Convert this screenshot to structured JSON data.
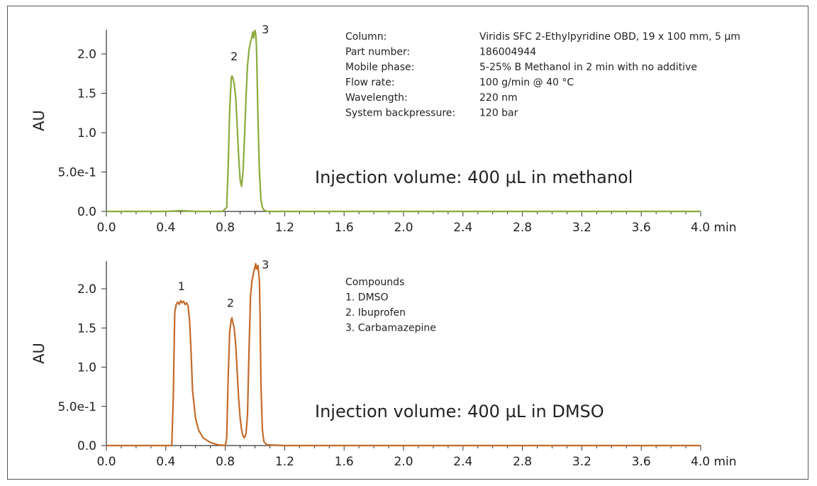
{
  "chart_data": [
    {
      "type": "line",
      "ylabel": "AU",
      "xunit": "min",
      "xlim": [
        0.0,
        4.0
      ],
      "ylim": [
        0.0,
        2.35
      ],
      "xticks": [
        0.0,
        0.4,
        0.8,
        1.2,
        1.6,
        2.0,
        2.4,
        2.8,
        3.2,
        3.6,
        4.0
      ],
      "xtick_labels": [
        "0.0",
        "0.4",
        "0.8",
        "1.2",
        "1.6",
        "2.0",
        "2.4",
        "2.8",
        "3.2",
        "3.6",
        "4.0 min"
      ],
      "yticks": [
        0.0,
        0.5,
        1.0,
        1.5,
        2.0
      ],
      "ytick_labels": [
        "0.0",
        "5.0e-1",
        "1.0",
        "1.5",
        "2.0"
      ],
      "series": [
        {
          "color": "#8aab3c",
          "x": [
            0.0,
            0.4,
            0.5,
            0.6,
            0.78,
            0.81,
            0.82,
            0.83,
            0.84,
            0.845,
            0.85,
            0.86,
            0.87,
            0.88,
            0.89,
            0.9,
            0.91,
            0.92,
            0.93,
            0.94,
            0.95,
            0.96,
            0.97,
            0.98,
            0.985,
            0.99,
            1.0,
            1.005,
            1.01,
            1.015,
            1.02,
            1.03,
            1.04,
            1.05,
            1.06,
            1.08,
            1.2,
            2.0,
            3.0,
            4.0
          ],
          "y": [
            0.0,
            0.0,
            0.01,
            0.0,
            0.0,
            0.05,
            0.6,
            1.3,
            1.68,
            1.72,
            1.7,
            1.62,
            1.45,
            1.1,
            0.7,
            0.4,
            0.32,
            0.5,
            0.95,
            1.45,
            1.85,
            2.05,
            2.15,
            2.22,
            2.28,
            2.2,
            2.3,
            2.26,
            2.1,
            1.7,
            1.2,
            0.5,
            0.15,
            0.05,
            0.02,
            0.0,
            0.0,
            0.0,
            0.0,
            0.0
          ]
        }
      ],
      "peak_labels": [
        {
          "label": "2",
          "x": 0.86,
          "y": 1.92
        },
        {
          "label": "3",
          "x": 1.07,
          "y": 2.26
        }
      ],
      "info_table": [
        {
          "key": "Column:",
          "value": "Viridis SFC 2-Ethylpyridine OBD, 19 x 100 mm, 5 µm"
        },
        {
          "key": "Part number:",
          "value": "186004944"
        },
        {
          "key": "Mobile phase:",
          "value": "5-25% B Methanol in 2 min with no additive"
        },
        {
          "key": "Flow rate:",
          "value": "100 g/min @ 40 °C"
        },
        {
          "key": "Wavelength:",
          "value": "220 nm"
        },
        {
          "key": "System backpressure:",
          "value": "120 bar"
        }
      ],
      "annotation": "Injection volume: 400 µL in methanol"
    },
    {
      "type": "line",
      "ylabel": "AU",
      "xunit": "min",
      "xlim": [
        0.0,
        4.0
      ],
      "ylim": [
        0.0,
        2.35
      ],
      "xticks": [
        0.0,
        0.4,
        0.8,
        1.2,
        1.6,
        2.0,
        2.4,
        2.8,
        3.2,
        3.6,
        4.0
      ],
      "xtick_labels": [
        "0.0",
        "0.4",
        "0.8",
        "1.2",
        "1.6",
        "2.0",
        "2.4",
        "2.8",
        "3.2",
        "3.6",
        "4.0 min"
      ],
      "yticks": [
        0.0,
        0.5,
        1.0,
        1.5,
        2.0
      ],
      "ytick_labels": [
        "0.0",
        "5.0e-1",
        "1.0",
        "1.5",
        "2.0"
      ],
      "series": [
        {
          "color": "#c46b2a",
          "x": [
            0.0,
            0.3,
            0.44,
            0.45,
            0.46,
            0.47,
            0.48,
            0.49,
            0.5,
            0.51,
            0.52,
            0.53,
            0.54,
            0.55,
            0.56,
            0.57,
            0.58,
            0.6,
            0.62,
            0.65,
            0.7,
            0.75,
            0.8,
            0.81,
            0.82,
            0.83,
            0.84,
            0.845,
            0.85,
            0.86,
            0.87,
            0.88,
            0.89,
            0.9,
            0.91,
            0.92,
            0.93,
            0.94,
            0.95,
            0.96,
            0.97,
            0.98,
            0.99,
            1.0,
            1.005,
            1.01,
            1.02,
            1.03,
            1.035,
            1.04,
            1.05,
            1.06,
            1.08,
            1.2,
            2.0,
            3.0,
            4.0
          ],
          "y": [
            0.0,
            0.0,
            0.0,
            0.6,
            1.7,
            1.8,
            1.83,
            1.8,
            1.85,
            1.82,
            1.84,
            1.8,
            1.82,
            1.78,
            1.6,
            1.2,
            0.7,
            0.35,
            0.2,
            0.1,
            0.04,
            0.01,
            0.0,
            0.1,
            0.9,
            1.45,
            1.6,
            1.63,
            1.58,
            1.5,
            1.3,
            0.95,
            0.6,
            0.35,
            0.2,
            0.12,
            0.1,
            0.15,
            0.4,
            1.2,
            1.9,
            2.1,
            2.2,
            2.28,
            2.32,
            2.25,
            2.3,
            2.1,
            1.6,
            0.8,
            0.2,
            0.05,
            0.01,
            0.0,
            0.0,
            0.0,
            0.0
          ]
        }
      ],
      "peak_labels": [
        {
          "label": "1",
          "x": 0.505,
          "y": 1.98
        },
        {
          "label": "2",
          "x": 0.835,
          "y": 1.77
        },
        {
          "label": "3",
          "x": 1.07,
          "y": 2.26
        }
      ],
      "compounds": {
        "title": "Compounds",
        "items": [
          "1. DMSO",
          "2. Ibuprofen",
          "3. Carbamazepine"
        ]
      },
      "annotation": "Injection volume: 400 µL in DMSO"
    }
  ]
}
